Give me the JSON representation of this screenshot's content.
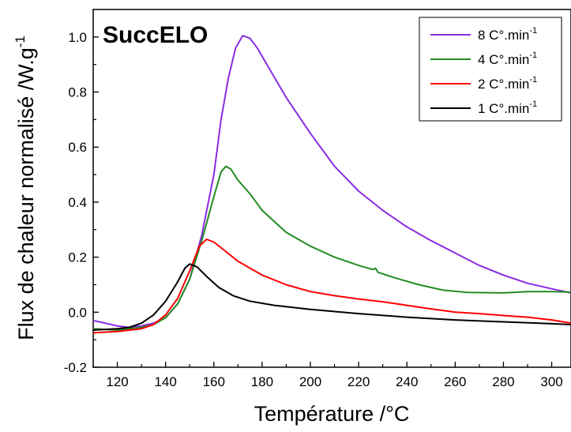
{
  "chart_data": {
    "type": "line",
    "title": "SuccELO",
    "xlabel": "Température /°C",
    "ylabel_main": "Flux de chaleur normalisé /W.g",
    "ylabel_sup": "-1",
    "xlim": [
      110,
      308
    ],
    "ylim": [
      -0.2,
      1.1
    ],
    "xticks": [
      120,
      140,
      160,
      180,
      200,
      220,
      240,
      260,
      280,
      300
    ],
    "yticks": [
      -0.2,
      0.0,
      0.2,
      0.4,
      0.6,
      0.8,
      1.0
    ],
    "xtick_labels": [
      "120",
      "140",
      "160",
      "180",
      "200",
      "220",
      "240",
      "260",
      "280",
      "300"
    ],
    "ytick_labels": [
      "-0.2",
      "0.0",
      "0.2",
      "0.4",
      "0.6",
      "0.8",
      "1.0"
    ],
    "legend_position": "top-right",
    "grid": false,
    "series": [
      {
        "name": "8 C°.min",
        "name_sup": "-1",
        "color": "#8a2be2",
        "points": [
          [
            110,
            -0.03
          ],
          [
            115,
            -0.04
          ],
          [
            120,
            -0.05
          ],
          [
            125,
            -0.055
          ],
          [
            130,
            -0.05
          ],
          [
            135,
            -0.04
          ],
          [
            140,
            -0.02
          ],
          [
            145,
            0.03
          ],
          [
            150,
            0.12
          ],
          [
            155,
            0.28
          ],
          [
            160,
            0.5
          ],
          [
            163,
            0.7
          ],
          [
            166,
            0.85
          ],
          [
            169,
            0.96
          ],
          [
            172,
            1.005
          ],
          [
            175,
            0.995
          ],
          [
            178,
            0.96
          ],
          [
            182,
            0.9
          ],
          [
            190,
            0.78
          ],
          [
            200,
            0.65
          ],
          [
            210,
            0.53
          ],
          [
            220,
            0.44
          ],
          [
            230,
            0.37
          ],
          [
            240,
            0.31
          ],
          [
            250,
            0.26
          ],
          [
            260,
            0.215
          ],
          [
            270,
            0.17
          ],
          [
            280,
            0.135
          ],
          [
            290,
            0.105
          ],
          [
            300,
            0.085
          ],
          [
            308,
            0.07
          ]
        ]
      },
      {
        "name": "4 C°.min",
        "name_sup": "-1",
        "color": "#228b22",
        "points": [
          [
            110,
            -0.06
          ],
          [
            120,
            -0.065
          ],
          [
            130,
            -0.055
          ],
          [
            135,
            -0.045
          ],
          [
            140,
            -0.02
          ],
          [
            145,
            0.03
          ],
          [
            150,
            0.12
          ],
          [
            155,
            0.26
          ],
          [
            160,
            0.42
          ],
          [
            163,
            0.51
          ],
          [
            165,
            0.53
          ],
          [
            167,
            0.52
          ],
          [
            170,
            0.48
          ],
          [
            175,
            0.43
          ],
          [
            180,
            0.37
          ],
          [
            190,
            0.29
          ],
          [
            200,
            0.24
          ],
          [
            210,
            0.2
          ],
          [
            220,
            0.17
          ],
          [
            226,
            0.155
          ],
          [
            227,
            0.16
          ],
          [
            228,
            0.145
          ],
          [
            235,
            0.125
          ],
          [
            245,
            0.1
          ],
          [
            255,
            0.08
          ],
          [
            265,
            0.072
          ],
          [
            280,
            0.07
          ],
          [
            290,
            0.075
          ],
          [
            300,
            0.075
          ],
          [
            308,
            0.073
          ]
        ]
      },
      {
        "name": "2 C°.min",
        "name_sup": "-1",
        "color": "#ff0000",
        "points": [
          [
            110,
            -0.075
          ],
          [
            120,
            -0.07
          ],
          [
            130,
            -0.06
          ],
          [
            135,
            -0.045
          ],
          [
            140,
            -0.01
          ],
          [
            145,
            0.05
          ],
          [
            150,
            0.15
          ],
          [
            154,
            0.24
          ],
          [
            157,
            0.265
          ],
          [
            160,
            0.255
          ],
          [
            165,
            0.22
          ],
          [
            170,
            0.185
          ],
          [
            175,
            0.16
          ],
          [
            180,
            0.135
          ],
          [
            190,
            0.1
          ],
          [
            200,
            0.075
          ],
          [
            210,
            0.06
          ],
          [
            220,
            0.048
          ],
          [
            230,
            0.038
          ],
          [
            240,
            0.025
          ],
          [
            250,
            0.012
          ],
          [
            260,
            0.0
          ],
          [
            270,
            -0.005
          ],
          [
            280,
            -0.012
          ],
          [
            290,
            -0.018
          ],
          [
            300,
            -0.028
          ],
          [
            308,
            -0.04
          ]
        ]
      },
      {
        "name": "1 C°.min",
        "name_sup": "-1",
        "color": "#000000",
        "points": [
          [
            110,
            -0.065
          ],
          [
            120,
            -0.06
          ],
          [
            125,
            -0.055
          ],
          [
            130,
            -0.04
          ],
          [
            135,
            -0.01
          ],
          [
            140,
            0.04
          ],
          [
            145,
            0.11
          ],
          [
            148,
            0.16
          ],
          [
            150,
            0.175
          ],
          [
            153,
            0.165
          ],
          [
            157,
            0.13
          ],
          [
            162,
            0.09
          ],
          [
            168,
            0.06
          ],
          [
            175,
            0.04
          ],
          [
            185,
            0.025
          ],
          [
            200,
            0.01
          ],
          [
            220,
            -0.005
          ],
          [
            240,
            -0.018
          ],
          [
            260,
            -0.028
          ],
          [
            280,
            -0.035
          ],
          [
            300,
            -0.042
          ],
          [
            308,
            -0.045
          ]
        ]
      }
    ]
  }
}
